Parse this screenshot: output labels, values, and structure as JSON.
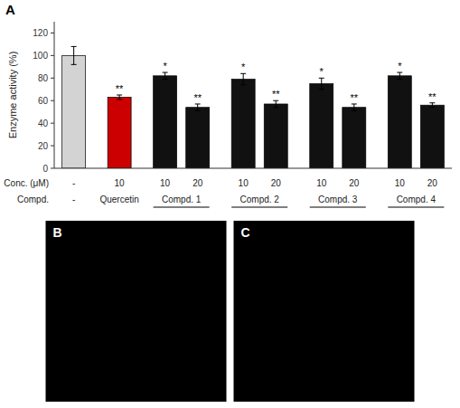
{
  "chart_data": {
    "type": "bar",
    "panel_label": "A",
    "ylabel": "Enzyme activity (%)",
    "category_label": "Conc. (μM)",
    "categories": [
      "-",
      "10",
      "10",
      "20",
      "10",
      "20",
      "10",
      "20",
      "10",
      "20"
    ],
    "group_label": "Compd.",
    "groups": [
      "-",
      "Quercetin",
      "Compd. 1",
      "Compd. 1",
      "Compd. 2",
      "Compd. 2",
      "Compd. 3",
      "Compd. 3",
      "Compd. 4",
      "Compd. 4"
    ],
    "values": [
      100,
      63,
      82,
      54,
      79,
      57,
      75,
      54,
      82,
      56
    ],
    "errors": [
      8,
      2,
      3,
      3,
      5,
      3,
      5,
      3,
      3,
      2
    ],
    "colors": [
      "#d3d3d3",
      "#cc0000",
      "#111111",
      "#111111",
      "#111111",
      "#111111",
      "#111111",
      "#111111",
      "#111111",
      "#111111"
    ],
    "significance": [
      null,
      "**",
      "*",
      "**",
      "*",
      "**",
      "*",
      "**",
      "*",
      "**"
    ],
    "ylim": [
      0,
      130
    ],
    "yticks": [
      0,
      20,
      40,
      60,
      80,
      100,
      120
    ],
    "grid": false,
    "image_panels": [
      "B",
      "C"
    ]
  }
}
